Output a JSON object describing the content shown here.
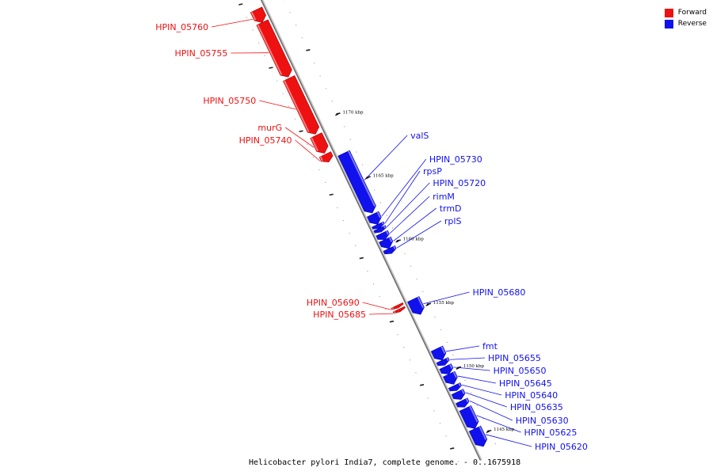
{
  "legend": {
    "forward_label": "Forward",
    "reverse_label": "Reverse",
    "forward_color": "#ee1111",
    "reverse_color": "#1111ee"
  },
  "caption": "Helicobacter pylori India7, complete genome. - 0..1675918",
  "genome": {
    "name": "Helicobacter pylori India7",
    "length_bp": 1675918,
    "visible_range_kbp": [
      1144,
      1180
    ]
  },
  "scale_labels": [
    {
      "text": "1170 kbp",
      "kbp": 1170
    },
    {
      "text": "1165 kbp",
      "kbp": 1165
    },
    {
      "text": "1160 kbp",
      "kbp": 1160
    },
    {
      "text": "1155 kbp",
      "kbp": 1155
    },
    {
      "text": "1150 kbp",
      "kbp": 1150
    },
    {
      "text": "1145 kbp",
      "kbp": 1145
    }
  ],
  "genes": [
    {
      "label": "HPIN_05760",
      "strand": "forward",
      "start_kbp": 1179.2,
      "end_kbp": 1178.2
    },
    {
      "label": "HPIN_05755",
      "strand": "forward",
      "start_kbp": 1178.2,
      "end_kbp": 1173.9
    },
    {
      "label": "HPIN_05750",
      "strand": "forward",
      "start_kbp": 1173.8,
      "end_kbp": 1169.4
    },
    {
      "label": "murG",
      "strand": "forward",
      "start_kbp": 1169.3,
      "end_kbp": 1167.9
    },
    {
      "label": "HPIN_05740",
      "strand": "forward",
      "start_kbp": 1167.8,
      "end_kbp": 1167.2
    },
    {
      "label": "valS",
      "strand": "reverse",
      "start_kbp": 1167.3,
      "end_kbp": 1162.6
    },
    {
      "label": "HPIN_05730",
      "strand": "reverse",
      "start_kbp": 1162.5,
      "end_kbp": 1161.7
    },
    {
      "label": "rpsP",
      "strand": "reverse",
      "start_kbp": 1161.7,
      "end_kbp": 1161.4
    },
    {
      "label": "HPIN_05720",
      "strand": "reverse",
      "start_kbp": 1161.4,
      "end_kbp": 1161.1
    },
    {
      "label": "rimM",
      "strand": "reverse",
      "start_kbp": 1161.0,
      "end_kbp": 1160.5
    },
    {
      "label": "trmD",
      "strand": "reverse",
      "start_kbp": 1160.5,
      "end_kbp": 1159.8
    },
    {
      "label": "rplS",
      "strand": "reverse",
      "start_kbp": 1159.8,
      "end_kbp": 1159.4
    },
    {
      "label": "HPIN_05690",
      "strand": "forward",
      "start_kbp": 1155.9,
      "end_kbp": 1155.7
    },
    {
      "label": "HPIN_05685",
      "strand": "forward",
      "start_kbp": 1155.6,
      "end_kbp": 1155.4
    },
    {
      "label": "HPIN_05680",
      "strand": "reverse",
      "start_kbp": 1155.8,
      "end_kbp": 1154.6
    },
    {
      "label": "fmt",
      "strand": "reverse",
      "start_kbp": 1151.9,
      "end_kbp": 1151.0
    },
    {
      "label": "HPIN_05655",
      "strand": "reverse",
      "start_kbp": 1151.0,
      "end_kbp": 1150.6
    },
    {
      "label": "HPIN_05650",
      "strand": "reverse",
      "start_kbp": 1150.5,
      "end_kbp": 1149.9
    },
    {
      "label": "HPIN_05645",
      "strand": "reverse",
      "start_kbp": 1149.9,
      "end_kbp": 1149.1
    },
    {
      "label": "HPIN_05640",
      "strand": "reverse",
      "start_kbp": 1149.0,
      "end_kbp": 1148.6
    },
    {
      "label": "HPIN_05635",
      "strand": "reverse",
      "start_kbp": 1148.5,
      "end_kbp": 1147.9
    },
    {
      "label": "HPIN_05630",
      "strand": "reverse",
      "start_kbp": 1147.8,
      "end_kbp": 1147.3
    },
    {
      "label": "HPIN_05625",
      "strand": "reverse",
      "start_kbp": 1147.2,
      "end_kbp": 1145.6
    },
    {
      "label": "HPIN_05620",
      "strand": "reverse",
      "start_kbp": 1145.6,
      "end_kbp": 1144.2
    }
  ]
}
